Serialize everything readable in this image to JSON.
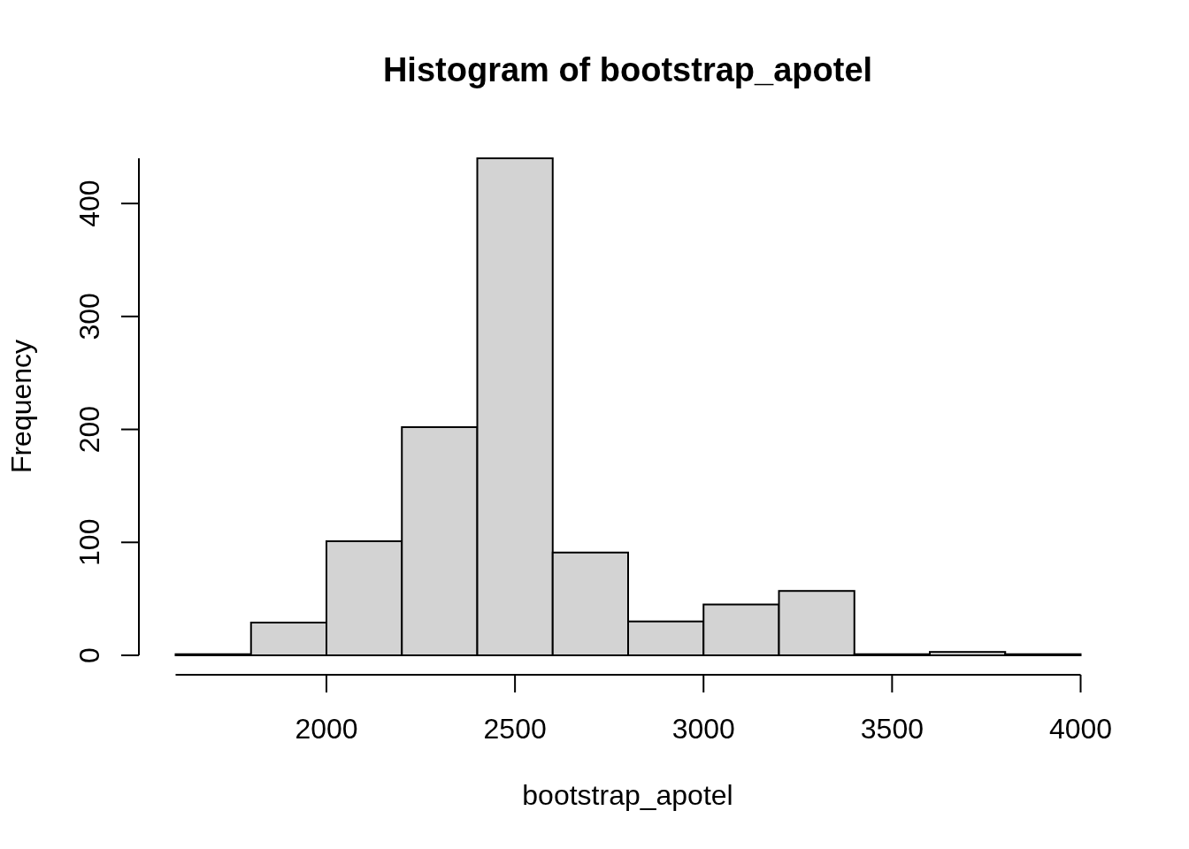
{
  "chart_data": {
    "type": "histogram",
    "title": "Histogram of bootstrap_apotel",
    "xlabel": "bootstrap_apotel",
    "ylabel": "Frequency",
    "bins": [
      1600,
      1800,
      2000,
      2200,
      2400,
      2600,
      2800,
      3000,
      3200,
      3400,
      3600,
      3800,
      4000
    ],
    "values": [
      1,
      29,
      101,
      202,
      440,
      91,
      30,
      45,
      57,
      1,
      3,
      1
    ],
    "color": "#d3d3d3",
    "xlim": [
      1600,
      4000
    ],
    "ylim": [
      0,
      440
    ],
    "xticks": [
      2000,
      2500,
      3000,
      3500,
      4000
    ],
    "yticks": [
      0,
      100,
      200,
      300,
      400
    ]
  }
}
